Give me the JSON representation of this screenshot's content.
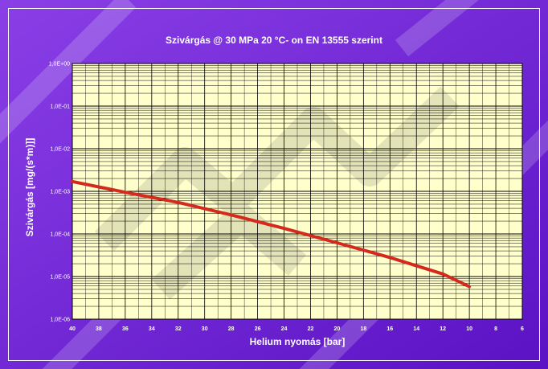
{
  "chart_data": {
    "type": "line",
    "title": "Szivárgás @ 30 MPa  20 °C- on  EN 13555 szerint",
    "xlabel": "Helium nyomás [bar]",
    "ylabel": "Szivárgás [mg/(s*m)]]",
    "x_ticks": [
      "40",
      "38",
      "36",
      "34",
      "32",
      "30",
      "28",
      "26",
      "24",
      "22",
      "20",
      "18",
      "16",
      "14",
      "12",
      "10",
      "8",
      "6"
    ],
    "y_ticks": [
      "1,0E+00",
      "1,0E-01",
      "1,0E-02",
      "1,0E-03",
      "1,0E-04",
      "1,0E-05",
      "1,0E-06"
    ],
    "xlim": [
      40,
      6
    ],
    "ylim": [
      1e-06,
      1
    ],
    "y_scale": "log",
    "grid": true,
    "legend": "none",
    "series": [
      {
        "x": [
          40,
          36,
          32,
          28,
          24,
          20,
          16,
          12,
          10
        ],
        "values": [
          0.0017,
          0.00095,
          0.00055,
          0.00028,
          0.000135,
          6.2e-05,
          2.8e-05,
          1.15e-05,
          5.8e-06
        ]
      }
    ],
    "colors": {
      "background": "#6b1fd0",
      "plot_area": "#ffffcc",
      "line": "#d42a1e",
      "text": "#ffffff"
    }
  }
}
